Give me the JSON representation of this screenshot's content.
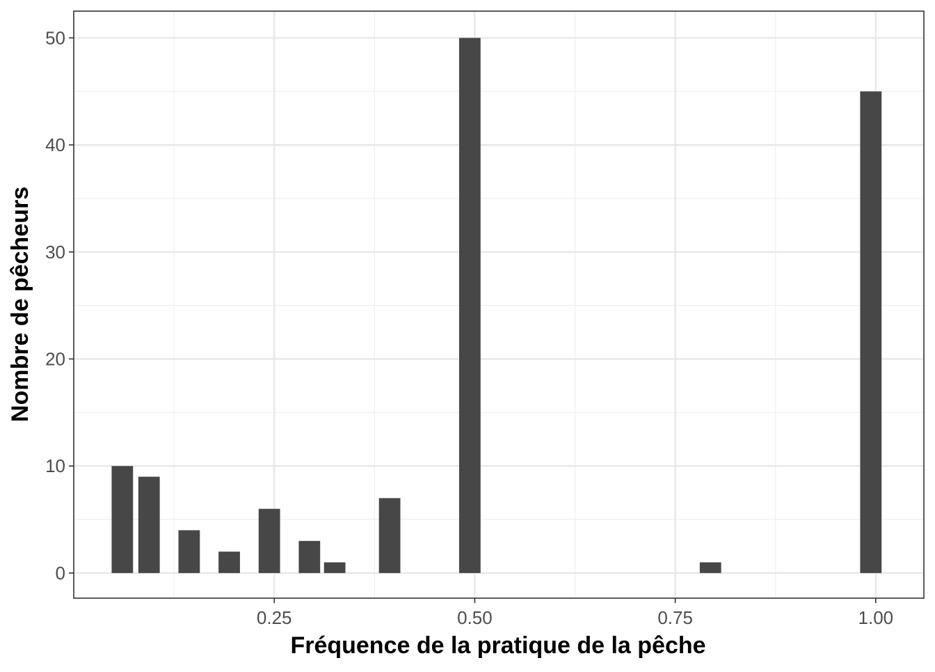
{
  "chart_data": {
    "type": "bar",
    "title": "",
    "xlabel": "Fréquence de la pratique de la pêche",
    "ylabel": "Nombre de pêcheurs",
    "xlim": [
      0.0,
      1.06
    ],
    "ylim": [
      -2.35,
      52.5
    ],
    "x_ticks": [
      {
        "value": 0.25,
        "label": "0.25"
      },
      {
        "value": 0.5,
        "label": "0.50"
      },
      {
        "value": 0.75,
        "label": "0.75"
      },
      {
        "value": 1.0,
        "label": "1.00"
      }
    ],
    "y_ticks": [
      {
        "value": 0,
        "label": "0"
      },
      {
        "value": 10,
        "label": "10"
      },
      {
        "value": 20,
        "label": "20"
      },
      {
        "value": 30,
        "label": "30"
      },
      {
        "value": 40,
        "label": "40"
      },
      {
        "value": 50,
        "label": "50"
      }
    ],
    "x_minor_breaks": [
      0.125,
      0.375,
      0.625,
      0.875
    ],
    "y_minor_breaks": [
      5,
      15,
      25,
      35,
      45
    ],
    "bar_width": 0.0267,
    "bar_color": "#474747",
    "grid": true,
    "legend": "none",
    "bars": [
      {
        "x": 0.0606,
        "y": 10
      },
      {
        "x": 0.0939,
        "y": 9
      },
      {
        "x": 0.1439,
        "y": 4
      },
      {
        "x": 0.1939,
        "y": 2
      },
      {
        "x": 0.2439,
        "y": 6
      },
      {
        "x": 0.2939,
        "y": 3
      },
      {
        "x": 0.3254,
        "y": 1
      },
      {
        "x": 0.3939,
        "y": 7
      },
      {
        "x": 0.4939,
        "y": 50
      },
      {
        "x": 0.7939,
        "y": 1
      },
      {
        "x": 0.9939,
        "y": 45
      }
    ]
  }
}
